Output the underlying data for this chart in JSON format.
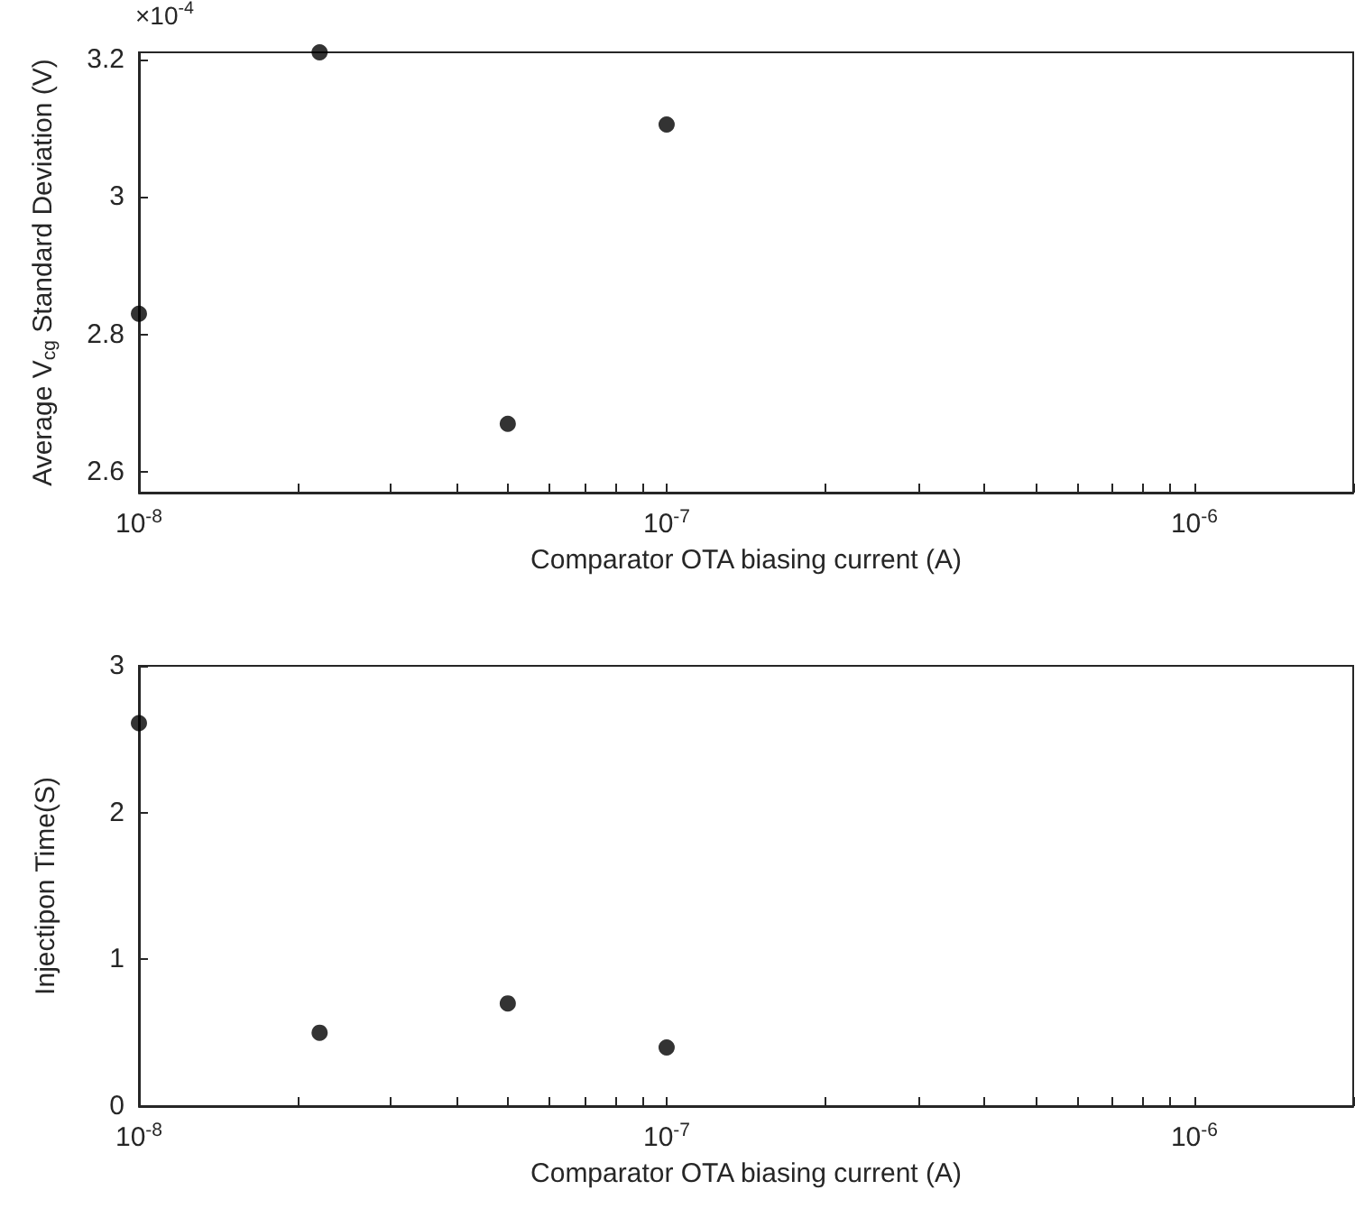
{
  "chart_data": [
    {
      "type": "scatter",
      "xlabel": "Comparator OTA biasing current (A)",
      "ylabel": "Average V$_{cg}$ Standard Deviation (V)",
      "annotations": [
        "×10$^{-4}$"
      ],
      "log": "x",
      "marker": "circle",
      "grid": false,
      "x": [
        1e-08,
        2.2e-08,
        5e-08,
        1e-07
      ],
      "series": [
        {
          "color": "#000000",
          "values": [
            2.83,
            3.21,
            2.67,
            3.105
          ]
        }
      ],
      "xlim": [
        1e-08,
        2e-06
      ],
      "xticks": [
        {
          "value": 1e-08,
          "label": "10$^{-8}$"
        },
        {
          "value": 2e-08,
          "label": null
        },
        {
          "value": 3e-08,
          "label": null
        },
        {
          "value": 4e-08,
          "label": null
        },
        {
          "value": 5e-08,
          "label": null
        },
        {
          "value": 6e-08,
          "label": null
        },
        {
          "value": 7e-08,
          "label": null
        },
        {
          "value": 8e-08,
          "label": null
        },
        {
          "value": 9e-08,
          "label": null
        },
        {
          "value": 1e-07,
          "label": "10$^{-7}$"
        },
        {
          "value": 2e-07,
          "label": null
        },
        {
          "value": 3e-07,
          "label": null
        },
        {
          "value": 4e-07,
          "label": null
        },
        {
          "value": 5e-07,
          "label": null
        },
        {
          "value": 6e-07,
          "label": null
        },
        {
          "value": 7e-07,
          "label": null
        },
        {
          "value": 8e-07,
          "label": null
        },
        {
          "value": 9e-07,
          "label": null
        },
        {
          "value": 1e-06,
          "label": "10$^{-6}$"
        },
        {
          "value": 2e-06,
          "label": null
        }
      ],
      "ylim": [
        2.57,
        3.21
      ],
      "yticks": [
        2.6,
        2.8,
        3,
        3.2
      ]
    },
    {
      "type": "scatter",
      "xlabel": "Comparator OTA biasing current (A)",
      "ylabel": "Injectipon Time(S)",
      "log": "x",
      "marker": "circle",
      "grid": false,
      "x": [
        1e-08,
        2.2e-08,
        5e-08,
        1e-07
      ],
      "series": [
        {
          "color": "#000000",
          "values": [
            2.61,
            0.5,
            0.7,
            0.4
          ]
        }
      ],
      "xlim": [
        1e-08,
        2e-06
      ],
      "xticks": [
        {
          "value": 1e-08,
          "label": "10$^{-8}$"
        },
        {
          "value": 2e-08,
          "label": null
        },
        {
          "value": 3e-08,
          "label": null
        },
        {
          "value": 4e-08,
          "label": null
        },
        {
          "value": 5e-08,
          "label": null
        },
        {
          "value": 6e-08,
          "label": null
        },
        {
          "value": 7e-08,
          "label": null
        },
        {
          "value": 8e-08,
          "label": null
        },
        {
          "value": 9e-08,
          "label": null
        },
        {
          "value": 1e-07,
          "label": "10$^{-7}$"
        },
        {
          "value": 2e-07,
          "label": null
        },
        {
          "value": 3e-07,
          "label": null
        },
        {
          "value": 4e-07,
          "label": null
        },
        {
          "value": 5e-07,
          "label": null
        },
        {
          "value": 6e-07,
          "label": null
        },
        {
          "value": 7e-07,
          "label": null
        },
        {
          "value": 8e-07,
          "label": null
        },
        {
          "value": 9e-07,
          "label": null
        },
        {
          "value": 1e-06,
          "label": "10$^{-6}$"
        },
        {
          "value": 2e-06,
          "label": null
        }
      ],
      "ylim": [
        0,
        3
      ],
      "yticks": [
        0,
        1,
        2,
        3
      ]
    }
  ]
}
